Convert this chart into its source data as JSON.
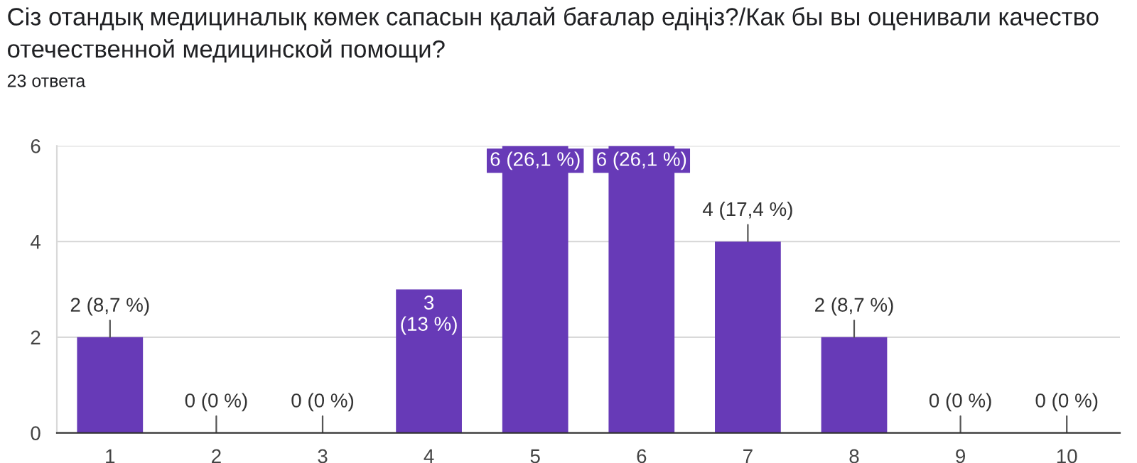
{
  "chart_data": {
    "type": "bar",
    "title": "Сіз отандық медициналық көмек сапасын қалай бағалар едіңіз?/Как бы вы оценивали качество отечественной медицинской помощи?",
    "subtitle": "23 ответа",
    "categories": [
      "1",
      "2",
      "3",
      "4",
      "5",
      "6",
      "7",
      "8",
      "9",
      "10"
    ],
    "values": [
      2,
      0,
      0,
      3,
      6,
      6,
      4,
      2,
      0,
      0
    ],
    "value_labels": [
      "2 (8,7 %)",
      "0 (0 %)",
      "0 (0 %)",
      "3\n(13 %)",
      "6 (26,1 %)",
      "6 (26,1 %)",
      "4 (17,4 %)",
      "2 (8,7 %)",
      "0 (0 %)",
      "0 (0 %)"
    ],
    "color": "#673ab7",
    "ylim": [
      0,
      6
    ],
    "yticks": [
      0,
      2,
      4,
      6
    ],
    "grid": "y",
    "legend": false
  }
}
